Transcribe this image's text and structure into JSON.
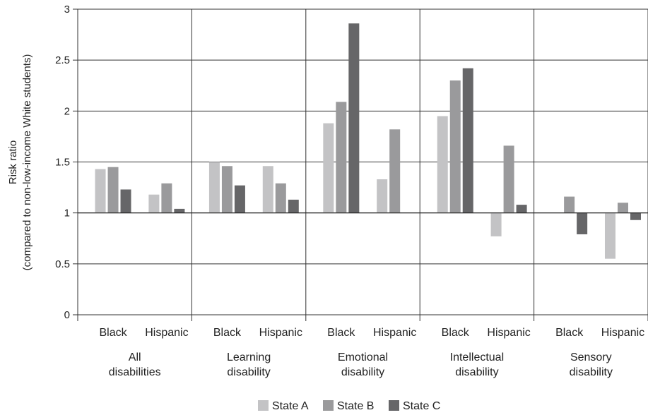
{
  "chart_data": {
    "type": "bar",
    "ylabel": "Risk ratio",
    "ylabel_sub": "(compared to non-low-income White students)",
    "ylim": [
      0,
      3
    ],
    "yticks": [
      "0",
      "0.5",
      "1",
      "1.5",
      "2",
      "2.5",
      "3"
    ],
    "baseline": 1,
    "grid": true,
    "legend_position": "bottom",
    "groups": [
      {
        "label_lines": [
          "All",
          "disabilities"
        ],
        "subgroups": [
          "Black",
          "Hispanic"
        ]
      },
      {
        "label_lines": [
          "Learning",
          "disability"
        ],
        "subgroups": [
          "Black",
          "Hispanic"
        ]
      },
      {
        "label_lines": [
          "Emotional",
          "disability"
        ],
        "subgroups": [
          "Black",
          "Hispanic"
        ]
      },
      {
        "label_lines": [
          "Intellectual",
          "disability"
        ],
        "subgroups": [
          "Black",
          "Hispanic"
        ]
      },
      {
        "label_lines": [
          "Sensory",
          "disability"
        ],
        "subgroups": [
          "Black",
          "Hispanic"
        ]
      }
    ],
    "series": [
      {
        "name": "State A",
        "color": "#c3c3c5",
        "values": [
          1.43,
          1.18,
          1.5,
          1.46,
          1.88,
          1.33,
          1.95,
          0.77,
          null,
          0.55
        ]
      },
      {
        "name": "State B",
        "color": "#9a9a9c",
        "values": [
          1.45,
          1.29,
          1.46,
          1.29,
          2.09,
          1.82,
          2.3,
          1.66,
          1.16,
          1.1
        ]
      },
      {
        "name": "State C",
        "color": "#666668",
        "values": [
          1.23,
          1.04,
          1.27,
          1.13,
          2.86,
          null,
          2.42,
          1.08,
          0.79,
          0.93
        ]
      }
    ]
  }
}
